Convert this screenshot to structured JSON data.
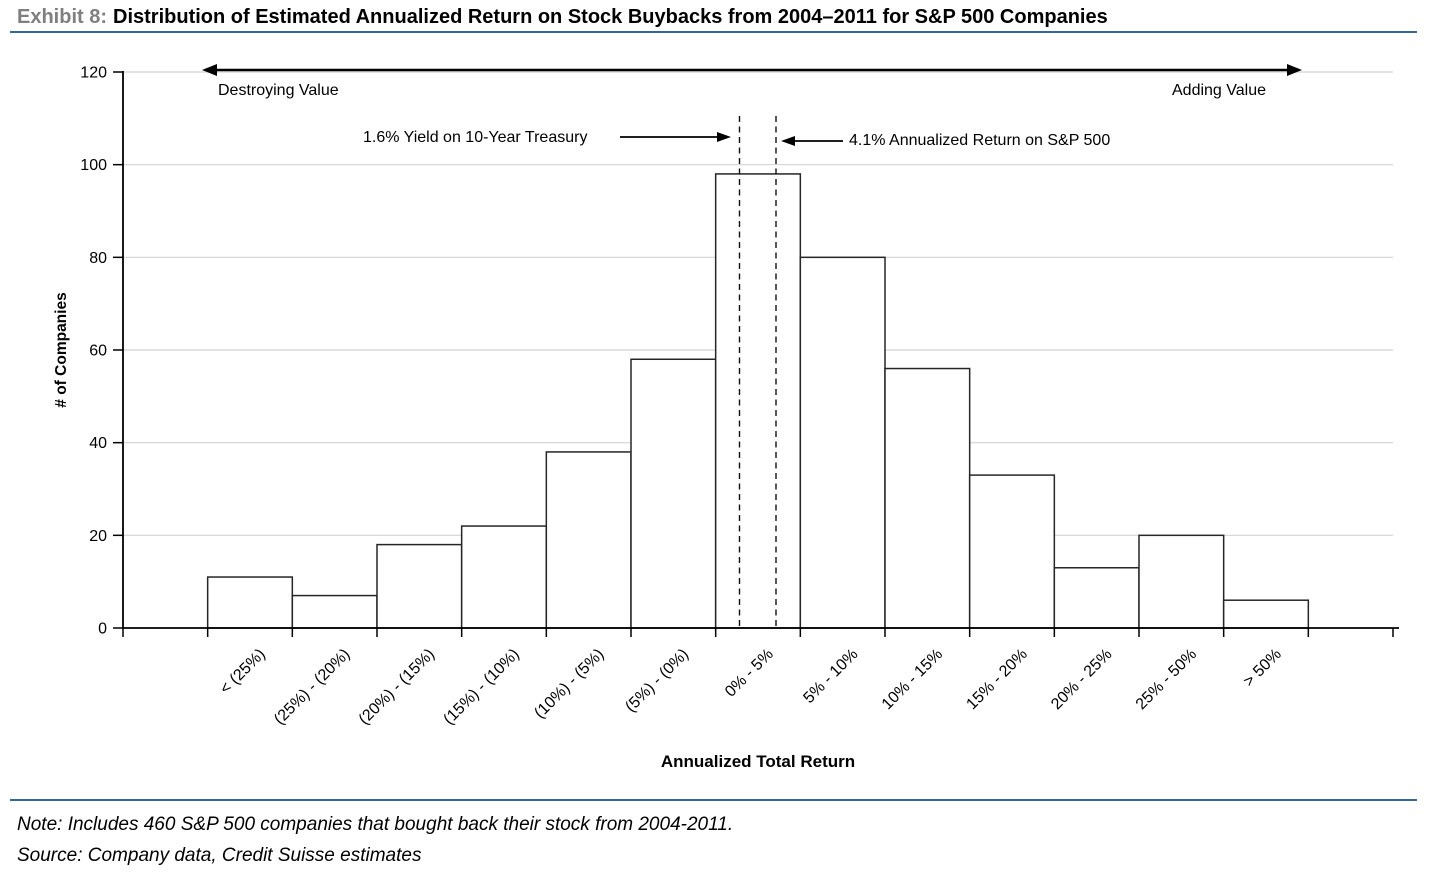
{
  "header": {
    "exhibit_label": "Exhibit 8:",
    "title": "Distribution of Estimated Annualized Return on Stock Buybacks from 2004–2011 for S&P 500 Companies"
  },
  "annotations": {
    "left_region": "Destroying Value",
    "right_region": "Adding Value",
    "treasury": "1.6% Yield on 10-Year Treasury",
    "sp500": "4.1% Annualized Return on S&P 500"
  },
  "footer": {
    "note": "Note: Includes 460 S&P 500 companies that bought back their stock from 2004-2011.",
    "source": "Source: Company data, Credit Suisse estimates"
  },
  "colors": {
    "accent_rule": "#336699",
    "exhibit_label_gray": "#7f7f7f",
    "gridline": "#d3d3d3",
    "bar_fill": "#ffffff",
    "bar_stroke": "#262626",
    "axis": "#000000"
  },
  "chart_data": {
    "type": "bar",
    "title": "Distribution of Estimated Annualized Return on Stock Buybacks from 2004–2011 for S&P 500 Companies",
    "categories": [
      "< (25%)",
      "(25%) - (20%)",
      "(20%) - (15%)",
      "(15%) - (10%)",
      "(10%) - (5%)",
      "(5%) - (0%)",
      "0% - 5%",
      "5% - 10%",
      "10% - 15%",
      "15% - 20%",
      "20% - 25%",
      "25% - 50%",
      "> 50%"
    ],
    "values": [
      11,
      7,
      18,
      22,
      38,
      58,
      98,
      80,
      56,
      33,
      13,
      20,
      6
    ],
    "xlabel": "Annualized Total Return",
    "ylabel": "# of Companies",
    "ylim": [
      0,
      120
    ],
    "yticks": [
      0,
      20,
      40,
      60,
      80,
      100,
      120
    ],
    "grid": "horizontal",
    "legend": "none",
    "reference_lines": [
      {
        "label": "1.6% Yield on 10-Year Treasury",
        "value_pct": 1.6,
        "within_category": "0% - 5%",
        "style": "dashed"
      },
      {
        "label": "4.1% Annualized Return on S&P 500",
        "value_pct": 4.1,
        "within_category": "0% - 5%",
        "style": "dashed"
      }
    ],
    "region_annotations": [
      {
        "label": "Destroying Value",
        "side": "left"
      },
      {
        "label": "Adding Value",
        "side": "right"
      }
    ]
  }
}
